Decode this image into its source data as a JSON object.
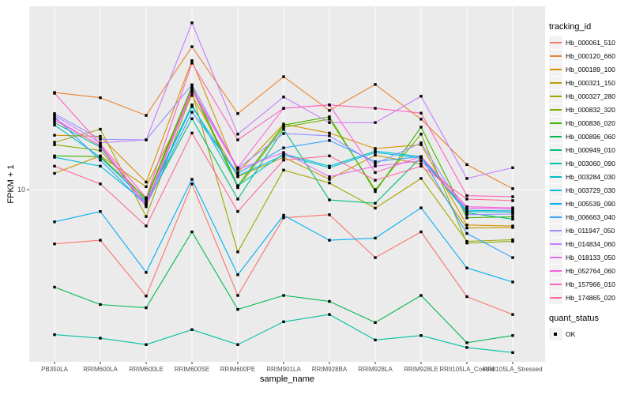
{
  "chart_data": {
    "type": "line",
    "title": "",
    "xlabel": "sample_name",
    "ylabel": "FPKM + 1",
    "y_scale": "log10",
    "y_ticks": [
      {
        "label": "10",
        "value": 10
      }
    ],
    "grid": "white-on-gray",
    "panel_background": "#EBEBEB",
    "gridline_color": "#FFFFFF",
    "axis_text_color": "#4D4D4D",
    "marker": "black-filled-square",
    "legend_position": "right",
    "legend_title": "tracking_id",
    "categories": [
      "PB350LA",
      "RRIM600LA",
      "RRIM600LE",
      "RRIM600SE",
      "RRIM600PE",
      "RRIM901LA",
      "RRIM928BA",
      "RRIM928LA",
      "RRIM928LE",
      "RRII105LA_Control",
      "RRII105LA_Stressed"
    ],
    "series": [
      {
        "name": "Hb_000061_510",
        "color": "#F8766D",
        "values": [
          5.75,
          5.97,
          3.38,
          10.6,
          3.4,
          7.5,
          7.74,
          5.0,
          6.5,
          3.36,
          2.8
        ]
      },
      {
        "name": "Hb_000120_660",
        "color": "#EA8331",
        "values": [
          26.9,
          25.5,
          21.3,
          42.9,
          21.7,
          31.6,
          22.4,
          29.2,
          20.5,
          12.9,
          10.1
        ]
      },
      {
        "name": "Hb_000189_100",
        "color": "#D89000",
        "values": [
          17.4,
          17.2,
          10.8,
          37.2,
          11.9,
          19.5,
          17.8,
          15.2,
          15.8,
          6.97,
          6.9
        ]
      },
      {
        "name": "Hb_000321_150",
        "color": "#C09B00",
        "values": [
          11.8,
          14.1,
          10.3,
          26.1,
          11.4,
          13.9,
          11.1,
          14.2,
          13.0,
          6.76,
          6.8
        ]
      },
      {
        "name": "Hb_000327_280",
        "color": "#A3A500",
        "values": [
          16.2,
          18.5,
          7.6,
          26.9,
          5.3,
          12.2,
          10.7,
          8.28,
          11.2,
          5.9,
          6.0
        ]
      },
      {
        "name": "Hb_000832_320",
        "color": "#7CAE00",
        "values": [
          15.8,
          14.9,
          9.0,
          28.0,
          10.2,
          18.9,
          20.5,
          10.0,
          17.6,
          5.8,
          5.9
        ]
      },
      {
        "name": "Hb_000836_020",
        "color": "#39B600",
        "values": [
          14.1,
          14.0,
          9.15,
          28.7,
          10.4,
          19.3,
          21.0,
          9.8,
          18.9,
          7.5,
          7.58
        ]
      },
      {
        "name": "Hb_000896_060",
        "color": "#00BB4E",
        "values": [
          3.7,
          3.1,
          3.0,
          6.5,
          2.95,
          3.4,
          3.2,
          2.58,
          3.4,
          2.1,
          2.26
        ]
      },
      {
        "name": "Hb_000949_010",
        "color": "#00BF7D",
        "values": [
          19.8,
          15.4,
          8.66,
          20.6,
          9.08,
          18.5,
          9.0,
          8.7,
          13.9,
          7.9,
          7.4
        ]
      },
      {
        "name": "Hb_003060_090",
        "color": "#00C1A3",
        "values": [
          2.28,
          2.2,
          2.06,
          2.4,
          2.06,
          2.6,
          2.8,
          2.16,
          2.26,
          2.0,
          1.9
        ]
      },
      {
        "name": "Hb_003284_030",
        "color": "#00BFC4",
        "values": [
          19.3,
          13.9,
          8.87,
          23.7,
          10.4,
          14.4,
          12.7,
          14.8,
          14.0,
          8.0,
          7.95
        ]
      },
      {
        "name": "Hb_003729_030",
        "color": "#00BAE0",
        "values": [
          13.9,
          12.7,
          8.7,
          23.3,
          11.5,
          14.2,
          12.5,
          14.6,
          13.8,
          8.1,
          8.05
        ]
      },
      {
        "name": "Hb_005539_090",
        "color": "#00B0F6",
        "values": [
          7.2,
          8.0,
          4.3,
          11.1,
          4.2,
          7.7,
          5.97,
          6.1,
          8.3,
          4.5,
          3.9
        ]
      },
      {
        "name": "Hb_006663_040",
        "color": "#35A2FF",
        "values": [
          21.0,
          13.5,
          8.5,
          22.0,
          11.8,
          15.3,
          16.5,
          13.3,
          14.0,
          6.4,
          5.0
        ]
      },
      {
        "name": "Hb_011947_050",
        "color": "#9590FF",
        "values": [
          21.7,
          16.7,
          16.6,
          29.1,
          12.4,
          17.7,
          17.3,
          13.0,
          16.1,
          7.74,
          7.8
        ]
      },
      {
        "name": "Hb_014834_060",
        "color": "#C77CFF",
        "values": [
          21.3,
          16.1,
          16.6,
          54.7,
          17.6,
          25.7,
          19.8,
          19.8,
          25.9,
          11.2,
          12.5
        ]
      },
      {
        "name": "Hb_018133_050",
        "color": "#E76BF3",
        "values": [
          20.6,
          15.6,
          8.4,
          27.4,
          12.3,
          14.6,
          11.4,
          12.7,
          13.4,
          8.28,
          8.2
        ]
      },
      {
        "name": "Hb_052764_060",
        "color": "#FA62DB",
        "values": [
          20.3,
          15.7,
          8.6,
          28.0,
          12.5,
          22.9,
          23.7,
          11.9,
          14.0,
          8.4,
          8.3
        ]
      },
      {
        "name": "Hb_157966_010",
        "color": "#FF62BC",
        "values": [
          26.7,
          15.9,
          9.2,
          36.3,
          16.6,
          22.9,
          23.7,
          22.9,
          21.8,
          9.4,
          9.3
        ]
      },
      {
        "name": "Hb_174865_020",
        "color": "#FF6A98",
        "values": [
          12.7,
          10.6,
          6.9,
          17.8,
          8.0,
          13.5,
          14.1,
          11.0,
          12.7,
          9.08,
          8.94
        ]
      }
    ],
    "quant_legend": {
      "title": "quant_status",
      "entries": [
        {
          "label": "OK",
          "symbol": "filled-square",
          "color": "#000000"
        }
      ]
    }
  }
}
